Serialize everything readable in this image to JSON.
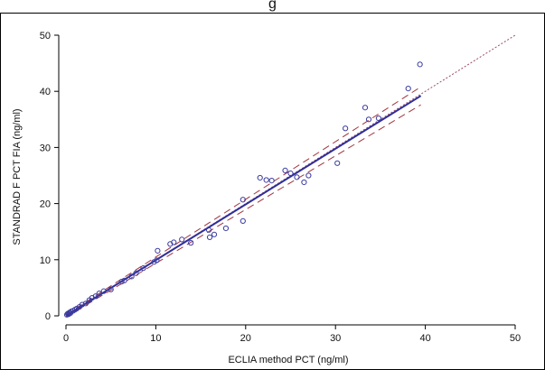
{
  "page": {
    "top_title_fragment": "g"
  },
  "chart_data": {
    "type": "scatter",
    "title": "",
    "xlabel": "ECLIA method PCT (ng/ml)",
    "ylabel": "STANDRAD F PCT FIA (ng/ml)",
    "xlim": [
      0,
      50
    ],
    "ylim": [
      0,
      50
    ],
    "x_ticks": [
      0,
      10,
      20,
      30,
      40,
      50
    ],
    "y_ticks": [
      0,
      10,
      20,
      30,
      40,
      50
    ],
    "grid": false,
    "colors": {
      "points": "#3b3ba0",
      "regression": "#2f2f9a",
      "confidence": "#a0343c",
      "identity": "#9a4a6a",
      "frame": "#000000"
    },
    "points": [
      {
        "x": 0.1,
        "y": 0.2
      },
      {
        "x": 0.2,
        "y": 0.4
      },
      {
        "x": 0.3,
        "y": 0.3
      },
      {
        "x": 0.4,
        "y": 0.6
      },
      {
        "x": 0.5,
        "y": 0.5
      },
      {
        "x": 0.6,
        "y": 0.8
      },
      {
        "x": 0.8,
        "y": 0.9
      },
      {
        "x": 1.0,
        "y": 1.1
      },
      {
        "x": 1.2,
        "y": 1.3
      },
      {
        "x": 1.5,
        "y": 1.6
      },
      {
        "x": 1.8,
        "y": 2.0
      },
      {
        "x": 2.2,
        "y": 2.2
      },
      {
        "x": 2.6,
        "y": 2.8
      },
      {
        "x": 2.9,
        "y": 3.2
      },
      {
        "x": 3.3,
        "y": 3.5
      },
      {
        "x": 3.7,
        "y": 4.0
      },
      {
        "x": 4.2,
        "y": 4.4
      },
      {
        "x": 5.0,
        "y": 4.7
      },
      {
        "x": 6.2,
        "y": 6.1
      },
      {
        "x": 6.5,
        "y": 6.3
      },
      {
        "x": 7.3,
        "y": 7.0
      },
      {
        "x": 7.8,
        "y": 7.6
      },
      {
        "x": 8.6,
        "y": 8.5
      },
      {
        "x": 9.8,
        "y": 9.6
      },
      {
        "x": 10.1,
        "y": 9.9
      },
      {
        "x": 10.2,
        "y": 11.6
      },
      {
        "x": 11.6,
        "y": 12.8
      },
      {
        "x": 12.0,
        "y": 13.1
      },
      {
        "x": 12.9,
        "y": 13.6
      },
      {
        "x": 13.9,
        "y": 13.0
      },
      {
        "x": 15.9,
        "y": 15.3
      },
      {
        "x": 16.0,
        "y": 14.0
      },
      {
        "x": 16.5,
        "y": 14.5
      },
      {
        "x": 17.8,
        "y": 15.6
      },
      {
        "x": 19.7,
        "y": 20.7
      },
      {
        "x": 19.7,
        "y": 16.9
      },
      {
        "x": 21.6,
        "y": 24.6
      },
      {
        "x": 22.3,
        "y": 24.2
      },
      {
        "x": 22.9,
        "y": 24.1
      },
      {
        "x": 24.4,
        "y": 25.9
      },
      {
        "x": 25.0,
        "y": 25.4
      },
      {
        "x": 25.7,
        "y": 24.7
      },
      {
        "x": 26.5,
        "y": 23.8
      },
      {
        "x": 27.0,
        "y": 25.0
      },
      {
        "x": 30.2,
        "y": 27.2
      },
      {
        "x": 31.1,
        "y": 33.4
      },
      {
        "x": 33.3,
        "y": 37.1
      },
      {
        "x": 33.7,
        "y": 35.0
      },
      {
        "x": 34.8,
        "y": 35.2
      },
      {
        "x": 38.1,
        "y": 40.5
      },
      {
        "x": 39.4,
        "y": 44.8
      }
    ],
    "regression_line": {
      "x": [
        0,
        39.5
      ],
      "y": [
        0,
        39.2
      ]
    },
    "confidence_upper": {
      "x": [
        0,
        39.5
      ],
      "y": [
        0.2,
        40.8
      ]
    },
    "confidence_lower": {
      "x": [
        0,
        39.5
      ],
      "y": [
        -0.2,
        37.6
      ]
    },
    "identity_line": {
      "x": [
        0,
        50
      ],
      "y": [
        0,
        50
      ]
    }
  }
}
